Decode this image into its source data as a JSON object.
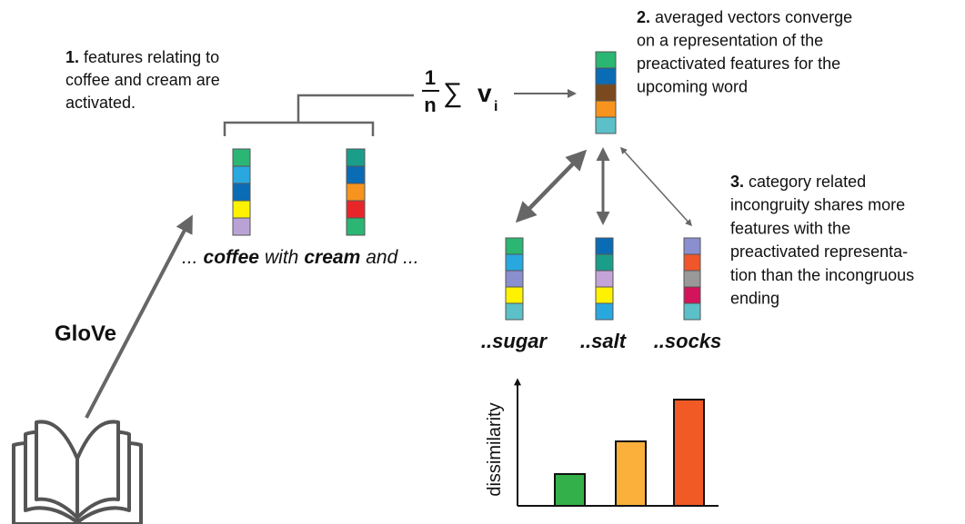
{
  "step1": {
    "number": "1.",
    "lines": [
      "features relating to",
      "coffee and cream are",
      "activated."
    ]
  },
  "formula": {
    "numerator": "1",
    "denominator": "n",
    "sum": "∑",
    "variable": "v",
    "subscript": "i"
  },
  "step2": {
    "number": "2.",
    "lines": [
      "averaged vectors converge",
      "on a representation of the",
      "preactivated features for the",
      "upcoming word"
    ]
  },
  "step3": {
    "number": "3.",
    "lines": [
      "category related",
      "incongruity shares more",
      "features with the",
      "preactivated representa-",
      "tion than the incongruous",
      "ending"
    ]
  },
  "sentence": [
    {
      "text": "...",
      "bold": false
    },
    {
      "text": "coffee",
      "bold": true
    },
    {
      "text": "with",
      "bold": false
    },
    {
      "text": "cream",
      "bold": true
    },
    {
      "text": "and ...",
      "bold": false
    }
  ],
  "source": "GloVe",
  "endings": [
    {
      "text": "..sugar",
      "color": "#3aaa35"
    },
    {
      "text": "..salt",
      "color": "#f7a934"
    },
    {
      "text": "..socks",
      "color": "#f05a28"
    }
  ],
  "chart": {
    "ylabel": "dissimilarity",
    "values": [
      35,
      71,
      117
    ],
    "colors": [
      "#34b04a",
      "#fbb03b",
      "#f15a24"
    ]
  }
}
